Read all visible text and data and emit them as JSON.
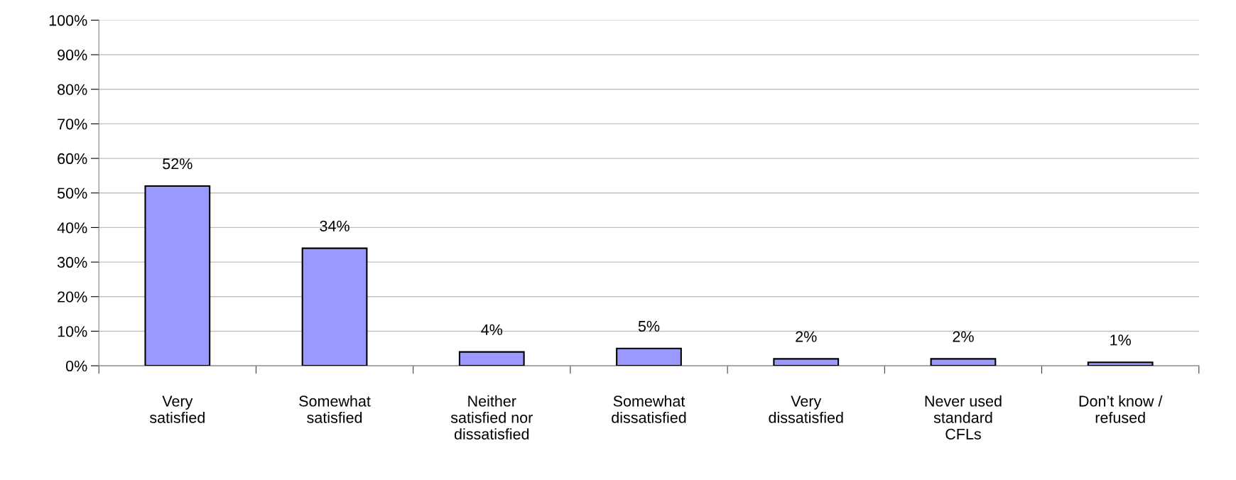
{
  "chart_data": {
    "type": "bar",
    "categories": [
      "Very\nsatisfied",
      "Somewhat\nsatisfied",
      "Neither\nsatisfied nor\ndissatisfied",
      "Somewhat\ndissatisfied",
      "Very\ndissatisfied",
      "Never used\nstandard\nCFLs",
      "Don’t know /\nrefused"
    ],
    "values": [
      52,
      34,
      4,
      5,
      2,
      2,
      1
    ],
    "value_labels": [
      "52%",
      "34%",
      "4%",
      "5%",
      "2%",
      "2%",
      "1%"
    ],
    "color": "#9999ff",
    "ylim": [
      0,
      100
    ],
    "yticks": [
      {
        "value": 0,
        "label": "0%"
      },
      {
        "value": 10,
        "label": "10%"
      },
      {
        "value": 20,
        "label": "20%"
      },
      {
        "value": 30,
        "label": "30%"
      },
      {
        "value": 40,
        "label": "40%"
      },
      {
        "value": 50,
        "label": "50%"
      },
      {
        "value": 60,
        "label": "60%"
      },
      {
        "value": 70,
        "label": "70%"
      },
      {
        "value": 80,
        "label": "80%"
      },
      {
        "value": 90,
        "label": "90%"
      },
      {
        "value": 100,
        "label": "100%"
      }
    ],
    "grid": "y"
  }
}
